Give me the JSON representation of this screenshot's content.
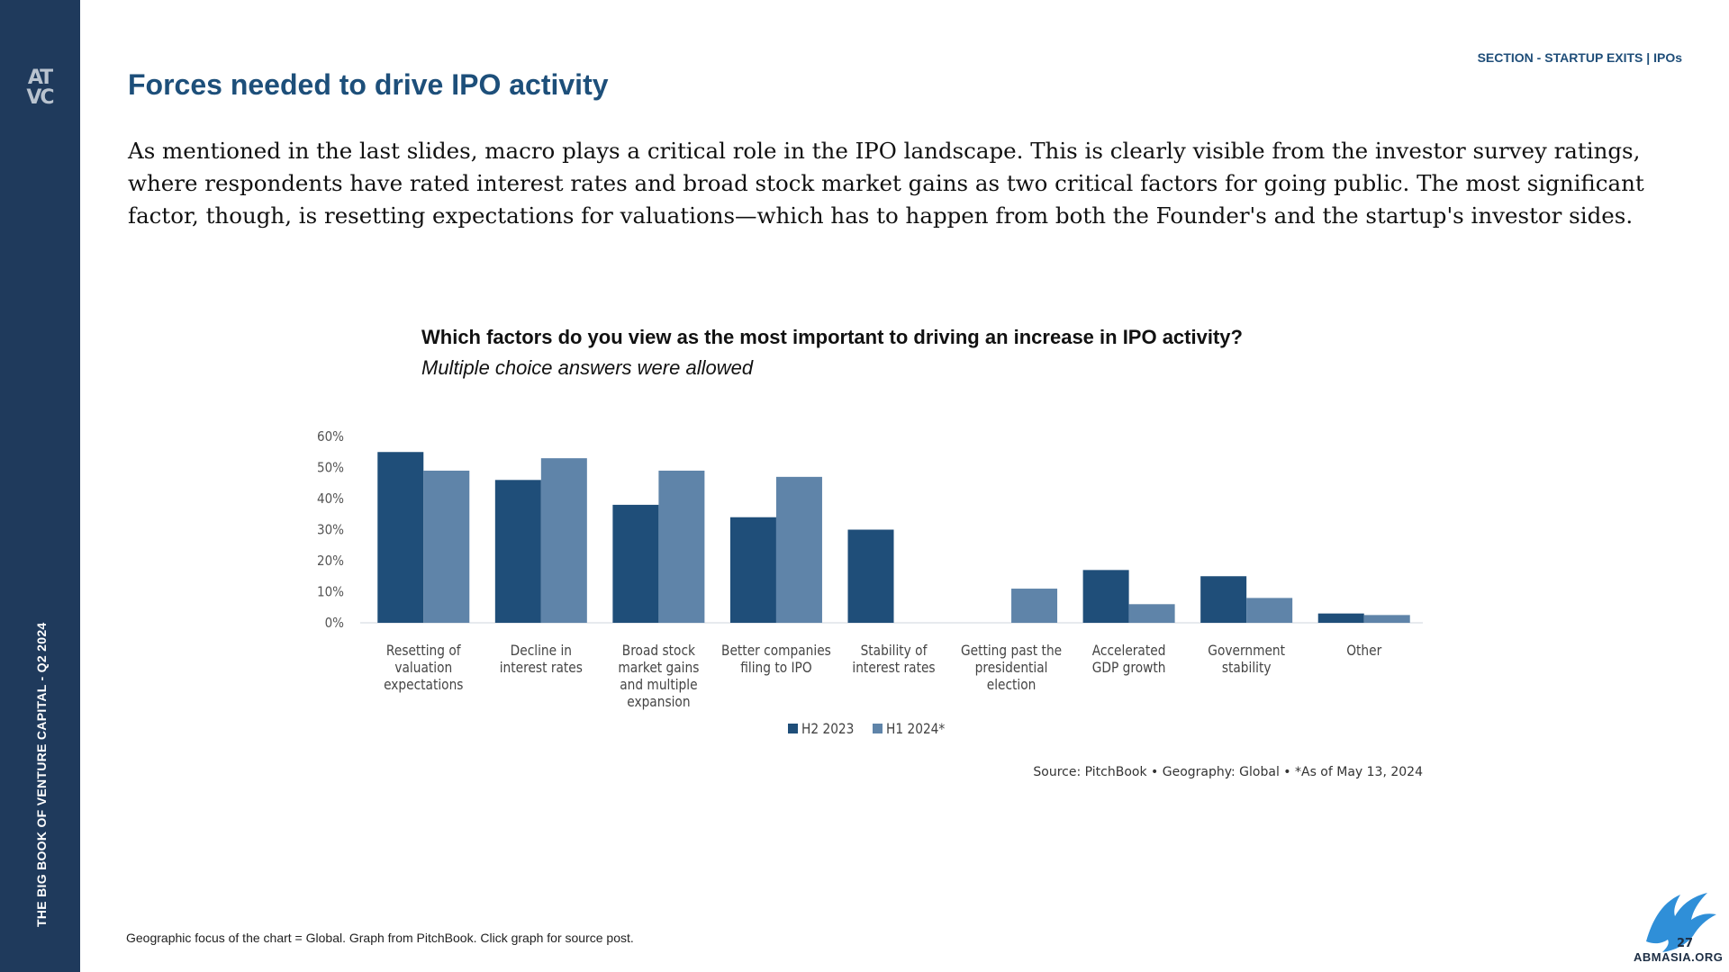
{
  "sidebar": {
    "logo_lines": [
      "AT",
      "VC"
    ],
    "vertical_text": "THE BIG BOOK OF VENTURE CAPITAL - Q2 2024"
  },
  "header": {
    "section": "SECTION - STARTUP EXITS | IPOs",
    "title": "Forces needed to drive IPO activity"
  },
  "intro": "As mentioned in the last slides, macro plays a critical role in the IPO landscape. This is clearly visible from the investor survey ratings, where respondents have rated interest rates and broad stock market gains as two critical factors for going public. The most significant factor, though, is resetting expectations for valuations—which has to happen from both the Founder's and the startup's investor sides.",
  "footnote": "Geographic focus of the chart = Global. Graph from PitchBook. Click graph for source post.",
  "watermark": {
    "number": "27",
    "site": "ABMASIA.ORG"
  },
  "colors": {
    "accent": "#1f3a5c",
    "h2_2023": "#1f4e79",
    "h1_2024": "#5f84a9",
    "title": "#1d4f7a"
  },
  "chart_data": {
    "type": "bar",
    "title": "Which factors do you view as the most important to driving an increase in IPO activity?",
    "subtitle": "Multiple choice answers were allowed",
    "categories": [
      [
        "Resetting of",
        "valuation",
        "expectations"
      ],
      [
        "Decline in",
        "interest rates"
      ],
      [
        "Broad stock",
        "market gains",
        "and multiple",
        "expansion"
      ],
      [
        "Better companies",
        "filing to IPO"
      ],
      [
        "Stability of",
        "interest rates"
      ],
      [
        "Getting past the",
        "presidential",
        "election"
      ],
      [
        "Accelerated",
        "GDP growth"
      ],
      [
        "Government",
        "stability"
      ],
      [
        "Other"
      ]
    ],
    "series": [
      {
        "name": "H2 2023",
        "color": "#1f4e79",
        "values": [
          55,
          46,
          38,
          34,
          30,
          0,
          17,
          15,
          3
        ]
      },
      {
        "name": "H1 2024*",
        "color": "#5f84a9",
        "values": [
          49,
          53,
          49,
          47,
          0,
          11,
          6,
          8,
          2.5
        ]
      }
    ],
    "yticks": [
      "0%",
      "10%",
      "20%",
      "30%",
      "40%",
      "50%",
      "60%"
    ],
    "ylim": [
      0,
      60
    ],
    "legend_position": "bottom",
    "source": "Source: PitchBook  •  Geography: Global  •  *As of May 13, 2024"
  }
}
